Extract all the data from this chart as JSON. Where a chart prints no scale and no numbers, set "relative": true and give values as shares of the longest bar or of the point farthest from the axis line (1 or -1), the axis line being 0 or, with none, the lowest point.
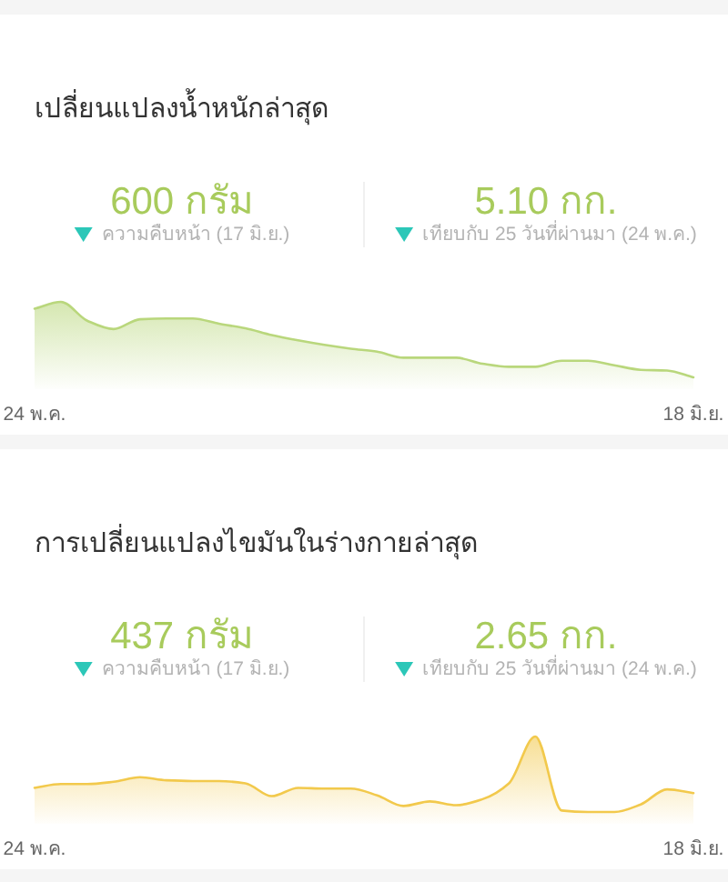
{
  "chart_data": [
    {
      "type": "area",
      "title": "เปลี่ยนแปลงน้ำหนักล่าสุด",
      "relative": true,
      "categories": [
        "24 พ.ค.",
        null,
        null,
        null,
        null,
        null,
        null,
        null,
        null,
        null,
        null,
        null,
        null,
        null,
        null,
        null,
        null,
        null,
        null,
        null,
        null,
        null,
        null,
        null,
        null,
        "18 มิ.ย."
      ],
      "series": [
        {
          "color": "#b9d77c",
          "values": [
            0.91,
            1,
            0.75,
            0.64,
            0.77,
            0.78,
            0.78,
            0.71,
            0.65,
            0.56,
            0.49,
            0.43,
            0.38,
            0.34,
            0.26,
            0.26,
            0.26,
            0.18,
            0.14,
            0.14,
            0.22,
            0.22,
            0.16,
            0.1,
            0.09,
            0
          ]
        }
      ],
      "annotations": [
        "600 กรัม",
        "ความคืบหน้า (17 มิ.ย.)",
        "5.10 กก.",
        "เทียบกับ 25 วันที่ผ่านมา (24 พ.ค.)"
      ]
    },
    {
      "type": "area",
      "title": "การเปลี่ยนแปลงไขมันในร่างกายล่าสุด",
      "relative": true,
      "categories": [
        "24 พ.ค.",
        null,
        null,
        null,
        null,
        null,
        null,
        null,
        null,
        null,
        null,
        null,
        null,
        null,
        null,
        null,
        null,
        null,
        null,
        null,
        null,
        null,
        null,
        null,
        null,
        "18 มิ.ย."
      ],
      "series": [
        {
          "color": "#f2c94c",
          "values": [
            0.32,
            0.37,
            0.37,
            0.4,
            0.46,
            0.42,
            0.41,
            0.41,
            0.38,
            0.21,
            0.32,
            0.31,
            0.31,
            0.22,
            0.08,
            0.14,
            0.09,
            0.17,
            0.38,
            1,
            0.02,
            0,
            0,
            0.1,
            0.3,
            0.25
          ]
        }
      ],
      "annotations": [
        "437 กรัม",
        "ความคืบหน้า (17 มิ.ย.)",
        "2.65 กก.",
        "เทียบกับ 25 วันที่ผ่านมา (24 พ.ค.)"
      ]
    }
  ]
}
